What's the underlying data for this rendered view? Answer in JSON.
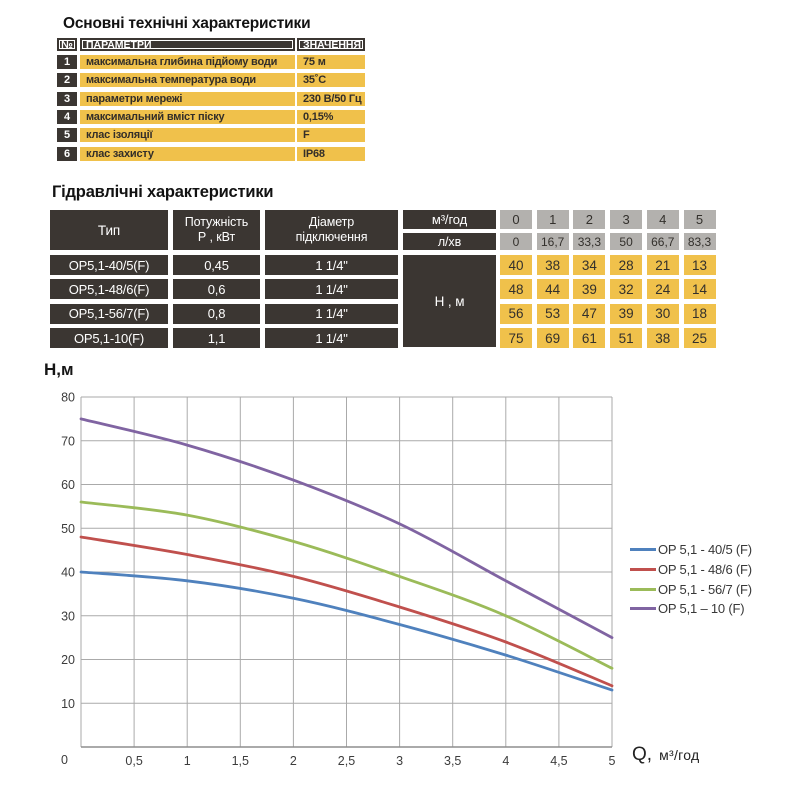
{
  "colors": {
    "dark": "#3b3632",
    "yellow": "#f0c14b",
    "chip_gray": "#b3b1ae",
    "grid": "#aaaaaa",
    "axis": "#8d8d8d"
  },
  "tech_table": {
    "title": "Основні технічні характеристики",
    "headers": {
      "num": "№",
      "param": "ПАРАМЕТРИ",
      "value": "ЗНАЧЕННЯ"
    },
    "rows": [
      {
        "num": "1",
        "param": "максимальна глибина підйому води",
        "value": "75 м"
      },
      {
        "num": "2",
        "param": "максимальна температура води",
        "value": "35˚С"
      },
      {
        "num": "3",
        "param": "параметри мережі",
        "value": "230 В/50 Гц"
      },
      {
        "num": "4",
        "param": "максимальний вміст піску",
        "value": "0,15%"
      },
      {
        "num": "5",
        "param": "клас ізоляції",
        "value": "F"
      },
      {
        "num": "6",
        "param": "клас захисту",
        "value": "IP68"
      }
    ]
  },
  "hydraulic_table": {
    "title": "Гідравлічні характеристики",
    "headers": {
      "type": "Тип",
      "power_line1": "Потужність",
      "power_line2": "Р , кВт",
      "diameter_line1": "Діаметр",
      "diameter_line2": "підключення",
      "flow_m3h_label": "м³/год",
      "flow_lmin_label": "л/хв",
      "head_label": "Н , м"
    },
    "flow_m3h": [
      "0",
      "1",
      "2",
      "3",
      "4",
      "5"
    ],
    "flow_lmin": [
      "0",
      "16,7",
      "33,3",
      "50",
      "66,7",
      "83,3"
    ],
    "rows": [
      {
        "type": "ОР5,1-40/5(F)",
        "power": "0,45",
        "diameter": "1 1/4\"",
        "heads": [
          "40",
          "38",
          "34",
          "28",
          "21",
          "13"
        ]
      },
      {
        "type": "ОР5,1-48/6(F)",
        "power": "0,6",
        "diameter": "1 1/4\"",
        "heads": [
          "48",
          "44",
          "39",
          "32",
          "24",
          "14"
        ]
      },
      {
        "type": "ОР5,1-56/7(F)",
        "power": "0,8",
        "diameter": "1 1/4\"",
        "heads": [
          "56",
          "53",
          "47",
          "39",
          "30",
          "18"
        ]
      },
      {
        "type": "ОР5,1-10(F)",
        "power": "1,1",
        "diameter": "1 1/4\"",
        "heads": [
          "75",
          "69",
          "61",
          "51",
          "38",
          "25"
        ]
      }
    ]
  },
  "chart_data": {
    "type": "line",
    "title": "",
    "ylabel": "Н,м",
    "xlabel": "Q, м³/год",
    "xlabel_main": "Q,",
    "xlabel_unit": "м³/год",
    "x": [
      0,
      1,
      2,
      3,
      4,
      5
    ],
    "series": [
      {
        "name": "OP 5,1 - 40/5 (F)",
        "color": "#4f81bd",
        "values": [
          40,
          38,
          34,
          28,
          21,
          13
        ]
      },
      {
        "name": "OP 5,1 - 48/6 (F)",
        "color": "#c0504d",
        "values": [
          48,
          44,
          39,
          32,
          24,
          14
        ]
      },
      {
        "name": "OP 5,1 - 56/7 (F)",
        "color": "#9bbb59",
        "values": [
          56,
          53,
          47,
          39,
          30,
          18
        ]
      },
      {
        "name": "OP 5,1 – 10 (F)",
        "color": "#8064a2",
        "values": [
          75,
          69,
          61,
          51,
          38,
          25
        ]
      }
    ],
    "xlim": [
      0,
      5
    ],
    "ylim": [
      0,
      80
    ],
    "x_ticks": [
      "0",
      "0,5",
      "1",
      "1,5",
      "2",
      "2,5",
      "3",
      "3,5",
      "4",
      "4,5",
      "5"
    ],
    "y_ticks": [
      "0",
      "10",
      "20",
      "30",
      "40",
      "50",
      "60",
      "70",
      "80"
    ],
    "grid": true,
    "legend_position": "right"
  }
}
